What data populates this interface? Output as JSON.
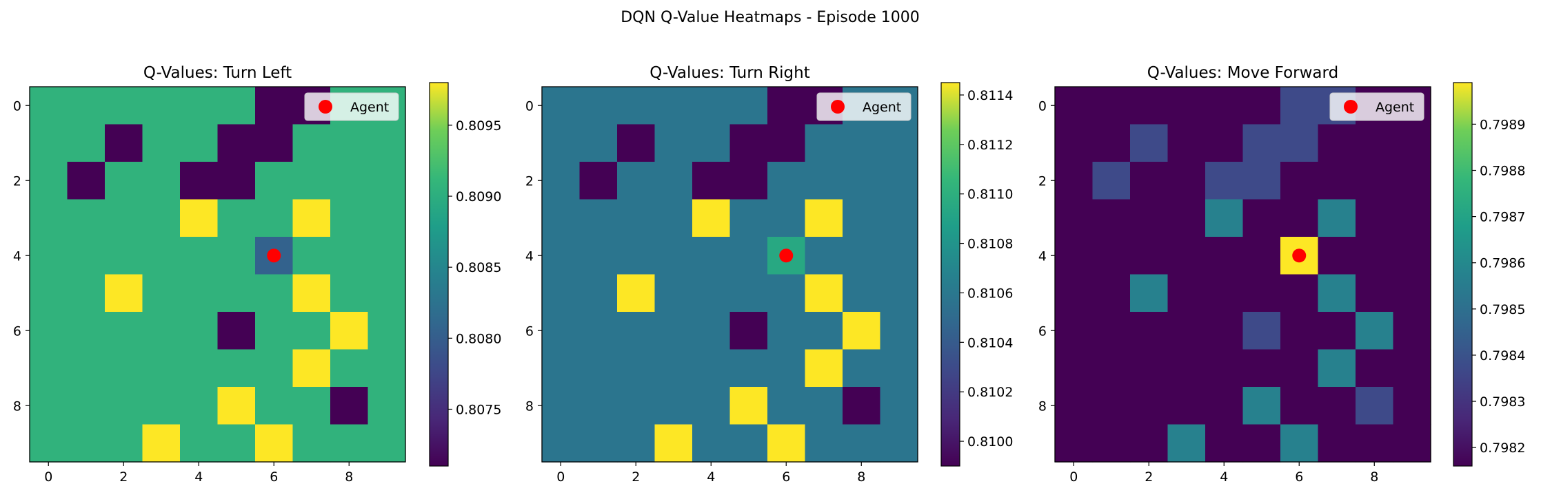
{
  "figure": {
    "title": "DQN Q-Value Heatmaps - Episode 1000"
  },
  "chart_data": [
    {
      "type": "heatmap",
      "title": "Q-Values: Turn Left",
      "xlabel": "",
      "ylabel": "",
      "x_ticks": [
        "0",
        "2",
        "4",
        "6",
        "8"
      ],
      "y_ticks": [
        "0",
        "2",
        "4",
        "6",
        "8"
      ],
      "colormap": "viridis",
      "vmin": 0.8071,
      "vmax": 0.8098,
      "colorbar_ticks": [
        "0.8075",
        "0.8080",
        "0.8085",
        "0.8090",
        "0.8095"
      ],
      "grid": false,
      "legend": {
        "placement": "upper-right",
        "entries": [
          "Agent"
        ]
      },
      "agent": {
        "row": 4,
        "col": 6,
        "color": "#ff0000"
      },
      "values": [
        [
          0.80906,
          0.80906,
          0.80906,
          0.80906,
          0.80906,
          0.80906,
          0.8071,
          0.8071,
          0.80906,
          0.80906
        ],
        [
          0.80906,
          0.80906,
          0.8071,
          0.80906,
          0.80906,
          0.8071,
          0.8071,
          0.80906,
          0.80906,
          0.80906
        ],
        [
          0.80906,
          0.8071,
          0.80906,
          0.80906,
          0.8071,
          0.8071,
          0.80906,
          0.80906,
          0.80906,
          0.80906
        ],
        [
          0.80906,
          0.80906,
          0.80906,
          0.80906,
          0.8098,
          0.80906,
          0.80906,
          0.8098,
          0.80906,
          0.80906
        ],
        [
          0.80906,
          0.80906,
          0.80906,
          0.80906,
          0.80906,
          0.80906,
          0.80805,
          0.80906,
          0.80906,
          0.80906
        ],
        [
          0.80906,
          0.80906,
          0.8098,
          0.80906,
          0.80906,
          0.80906,
          0.80906,
          0.8098,
          0.80906,
          0.80906
        ],
        [
          0.80906,
          0.80906,
          0.80906,
          0.80906,
          0.80906,
          0.8071,
          0.80906,
          0.80906,
          0.8098,
          0.80906
        ],
        [
          0.80906,
          0.80906,
          0.80906,
          0.80906,
          0.80906,
          0.80906,
          0.80906,
          0.8098,
          0.80906,
          0.80906
        ],
        [
          0.80906,
          0.80906,
          0.80906,
          0.80906,
          0.80906,
          0.8098,
          0.80906,
          0.80906,
          0.8071,
          0.80906
        ],
        [
          0.80906,
          0.80906,
          0.80906,
          0.8098,
          0.80906,
          0.80906,
          0.8098,
          0.80906,
          0.80906,
          0.80906
        ]
      ]
    },
    {
      "type": "heatmap",
      "title": "Q-Values: Turn Right",
      "xlabel": "",
      "ylabel": "",
      "x_ticks": [
        "0",
        "2",
        "4",
        "6",
        "8"
      ],
      "y_ticks": [
        "0",
        "2",
        "4",
        "6",
        "8"
      ],
      "colormap": "viridis",
      "vmin": 0.8099,
      "vmax": 0.81145,
      "colorbar_ticks": [
        "0.8100",
        "0.8102",
        "0.8104",
        "0.8106",
        "0.8108",
        "0.8110",
        "0.8112",
        "0.8114"
      ],
      "grid": false,
      "legend": {
        "placement": "upper-right",
        "entries": [
          "Agent"
        ]
      },
      "agent": {
        "row": 4,
        "col": 6,
        "color": "#ff0000"
      },
      "values": [
        [
          0.81058,
          0.81058,
          0.81058,
          0.81058,
          0.81058,
          0.81058,
          0.8099,
          0.8099,
          0.81058,
          0.81058
        ],
        [
          0.81058,
          0.81058,
          0.8099,
          0.81058,
          0.81058,
          0.8099,
          0.8099,
          0.81058,
          0.81058,
          0.81058
        ],
        [
          0.81058,
          0.8099,
          0.81058,
          0.81058,
          0.8099,
          0.8099,
          0.81058,
          0.81058,
          0.81058,
          0.81058
        ],
        [
          0.81058,
          0.81058,
          0.81058,
          0.81058,
          0.81145,
          0.81058,
          0.81058,
          0.81145,
          0.81058,
          0.81058
        ],
        [
          0.81058,
          0.81058,
          0.81058,
          0.81058,
          0.81058,
          0.81058,
          0.81095,
          0.81058,
          0.81058,
          0.81058
        ],
        [
          0.81058,
          0.81058,
          0.81145,
          0.81058,
          0.81058,
          0.81058,
          0.81058,
          0.81145,
          0.81058,
          0.81058
        ],
        [
          0.81058,
          0.81058,
          0.81058,
          0.81058,
          0.81058,
          0.8099,
          0.81058,
          0.81058,
          0.81145,
          0.81058
        ],
        [
          0.81058,
          0.81058,
          0.81058,
          0.81058,
          0.81058,
          0.81058,
          0.81058,
          0.81145,
          0.81058,
          0.81058
        ],
        [
          0.81058,
          0.81058,
          0.81058,
          0.81058,
          0.81058,
          0.81145,
          0.81058,
          0.81058,
          0.8099,
          0.81058
        ],
        [
          0.81058,
          0.81058,
          0.81058,
          0.81145,
          0.81058,
          0.81058,
          0.81145,
          0.81058,
          0.81058,
          0.81058
        ]
      ]
    },
    {
      "type": "heatmap",
      "title": "Q-Values: Move Forward",
      "xlabel": "",
      "ylabel": "",
      "x_ticks": [
        "0",
        "2",
        "4",
        "6",
        "8"
      ],
      "y_ticks": [
        "0",
        "2",
        "4",
        "6",
        "8"
      ],
      "colormap": "viridis",
      "vmin": 0.79816,
      "vmax": 0.79899,
      "colorbar_ticks": [
        "0.7982",
        "0.7983",
        "0.7984",
        "0.7985",
        "0.7986",
        "0.7987",
        "0.7988",
        "0.7989"
      ],
      "grid": false,
      "legend": {
        "placement": "upper-right",
        "entries": [
          "Agent"
        ]
      },
      "agent": {
        "row": 4,
        "col": 6,
        "color": "#ff0000"
      },
      "values": [
        [
          0.79816,
          0.79816,
          0.79816,
          0.79816,
          0.79816,
          0.79816,
          0.79837,
          0.79837,
          0.79816,
          0.79816
        ],
        [
          0.79816,
          0.79816,
          0.79837,
          0.79816,
          0.79816,
          0.79837,
          0.79837,
          0.79816,
          0.79816,
          0.79816
        ],
        [
          0.79816,
          0.79837,
          0.79816,
          0.79816,
          0.79837,
          0.79837,
          0.79816,
          0.79816,
          0.79816,
          0.79816
        ],
        [
          0.79816,
          0.79816,
          0.79816,
          0.79816,
          0.79857,
          0.79816,
          0.79816,
          0.79857,
          0.79816,
          0.79816
        ],
        [
          0.79816,
          0.79816,
          0.79816,
          0.79816,
          0.79816,
          0.79816,
          0.79899,
          0.79816,
          0.79816,
          0.79816
        ],
        [
          0.79816,
          0.79816,
          0.79857,
          0.79816,
          0.79816,
          0.79816,
          0.79816,
          0.79857,
          0.79816,
          0.79816
        ],
        [
          0.79816,
          0.79816,
          0.79816,
          0.79816,
          0.79816,
          0.79837,
          0.79816,
          0.79816,
          0.79857,
          0.79816
        ],
        [
          0.79816,
          0.79816,
          0.79816,
          0.79816,
          0.79816,
          0.79816,
          0.79816,
          0.79857,
          0.79816,
          0.79816
        ],
        [
          0.79816,
          0.79816,
          0.79816,
          0.79816,
          0.79816,
          0.79857,
          0.79816,
          0.79816,
          0.79837,
          0.79816
        ],
        [
          0.79816,
          0.79816,
          0.79816,
          0.79857,
          0.79816,
          0.79816,
          0.79857,
          0.79816,
          0.79816,
          0.79816
        ]
      ]
    }
  ]
}
